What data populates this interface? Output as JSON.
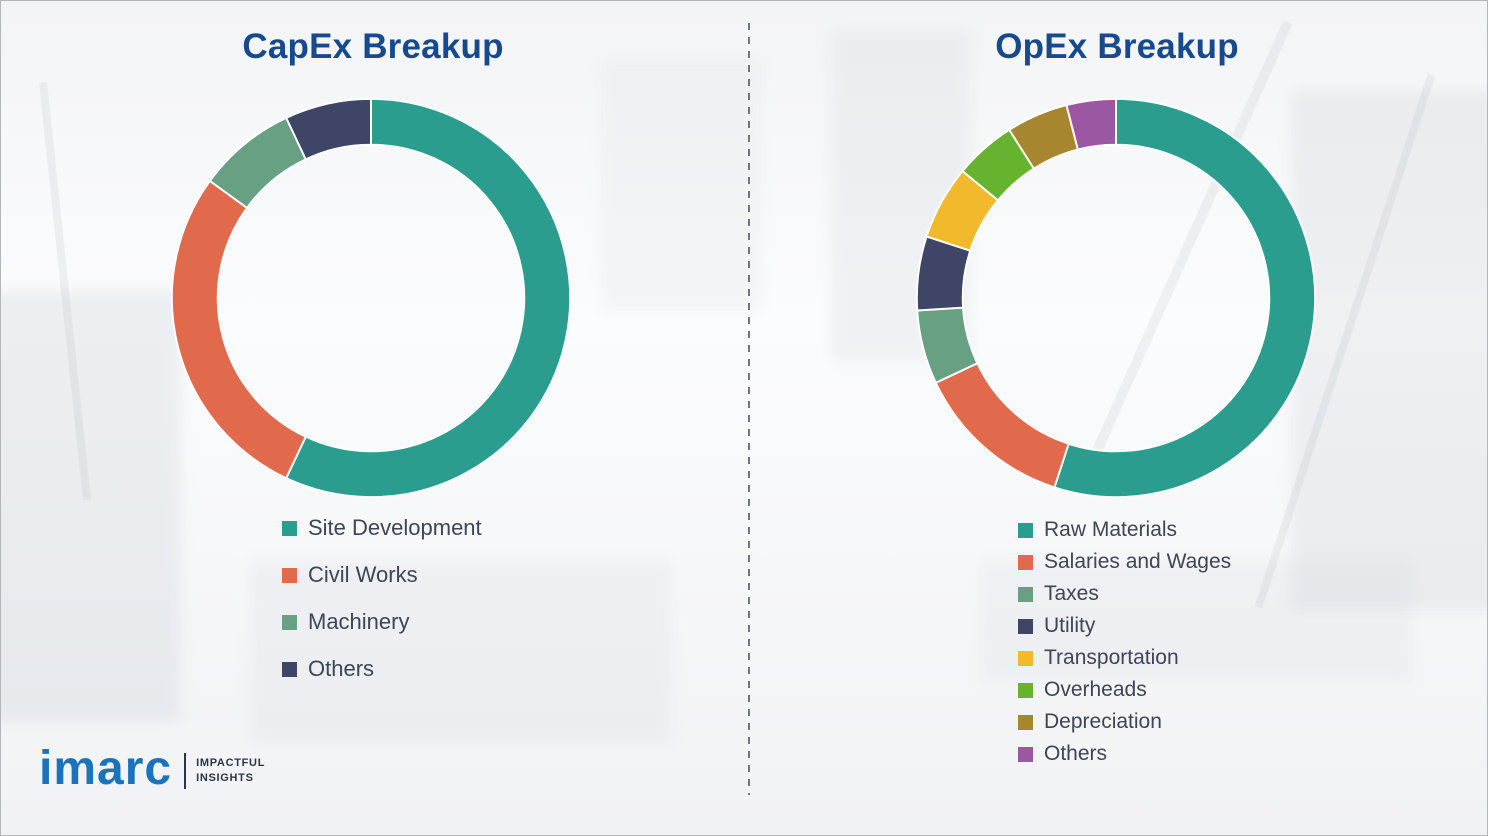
{
  "chart_data": [
    {
      "type": "pie",
      "subtype": "donut",
      "title": "CapEx Breakup",
      "labels": [
        "Site Development",
        "Civil Works",
        "Machinery",
        "Others"
      ],
      "values": [
        57,
        28,
        8,
        7
      ],
      "colors": [
        "#2b9d8f",
        "#e1694c",
        "#67a083",
        "#3f4566"
      ],
      "start_angle_deg": 0,
      "direction": "clockwise",
      "legend_position": "below-left"
    },
    {
      "type": "pie",
      "subtype": "donut",
      "title": "OpEx Breakup",
      "labels": [
        "Raw Materials",
        "Salaries and Wages",
        "Taxes",
        "Utility",
        "Transportation",
        "Overheads",
        "Depreciation",
        "Others"
      ],
      "values": [
        55,
        13,
        6,
        6,
        6,
        5,
        5,
        4
      ],
      "colors": [
        "#2b9d8f",
        "#e1694c",
        "#67a083",
        "#3f4566",
        "#f2b92c",
        "#65b32e",
        "#a8862f",
        "#9c57a3"
      ],
      "start_angle_deg": 0,
      "direction": "clockwise",
      "legend_position": "below-left"
    }
  ],
  "divider": {
    "style": "vertical-dashed"
  },
  "logo": {
    "brand": "imarc",
    "tagline_line1": "IMPACTFUL",
    "tagline_line2": "INSIGHTS"
  }
}
